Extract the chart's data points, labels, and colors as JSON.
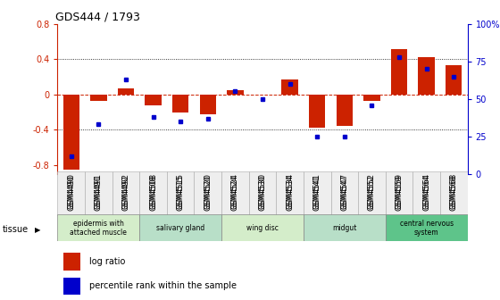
{
  "title": "GDS444 / 1793",
  "samples": [
    "GSM4490",
    "GSM4491",
    "GSM4492",
    "GSM4508",
    "GSM4515",
    "GSM4520",
    "GSM4524",
    "GSM4530",
    "GSM4534",
    "GSM4541",
    "GSM4547",
    "GSM4552",
    "GSM4559",
    "GSM4564",
    "GSM4568"
  ],
  "log_ratio": [
    -0.85,
    -0.07,
    0.07,
    -0.12,
    -0.2,
    -0.22,
    0.05,
    0.0,
    0.17,
    -0.38,
    -0.35,
    -0.07,
    0.52,
    0.42,
    0.33
  ],
  "percentile": [
    12,
    33,
    63,
    38,
    35,
    37,
    55,
    50,
    60,
    25,
    25,
    46,
    78,
    70,
    65
  ],
  "tissue_groups": [
    {
      "label": "epidermis with\nattached muscle",
      "start": 0,
      "end": 2,
      "color": "#d4edca"
    },
    {
      "label": "salivary gland",
      "start": 3,
      "end": 5,
      "color": "#b8dfc8"
    },
    {
      "label": "wing disc",
      "start": 6,
      "end": 8,
      "color": "#d4edca"
    },
    {
      "label": "midgut",
      "start": 9,
      "end": 11,
      "color": "#b8dfc8"
    },
    {
      "label": "central nervous\nsystem",
      "start": 12,
      "end": 14,
      "color": "#5ec48a"
    }
  ],
  "bar_color": "#cc2200",
  "dot_color": "#0000cc",
  "ylim_left": [
    -0.9,
    0.8
  ],
  "ylim_right": [
    0,
    100
  ],
  "yticks_left": [
    -0.8,
    -0.4,
    0.0,
    0.4,
    0.8
  ],
  "yticks_right": [
    0,
    25,
    50,
    75,
    100
  ],
  "ytick_labels_left": [
    "-0.8",
    "-0.4",
    "0",
    "0.4",
    "0.8"
  ],
  "ytick_labels_right": [
    "0",
    "25",
    "50",
    "75",
    "100%"
  ],
  "dotted_lines": [
    -0.4,
    0.4
  ],
  "bar_width": 0.6,
  "tissue_label": "tissue"
}
